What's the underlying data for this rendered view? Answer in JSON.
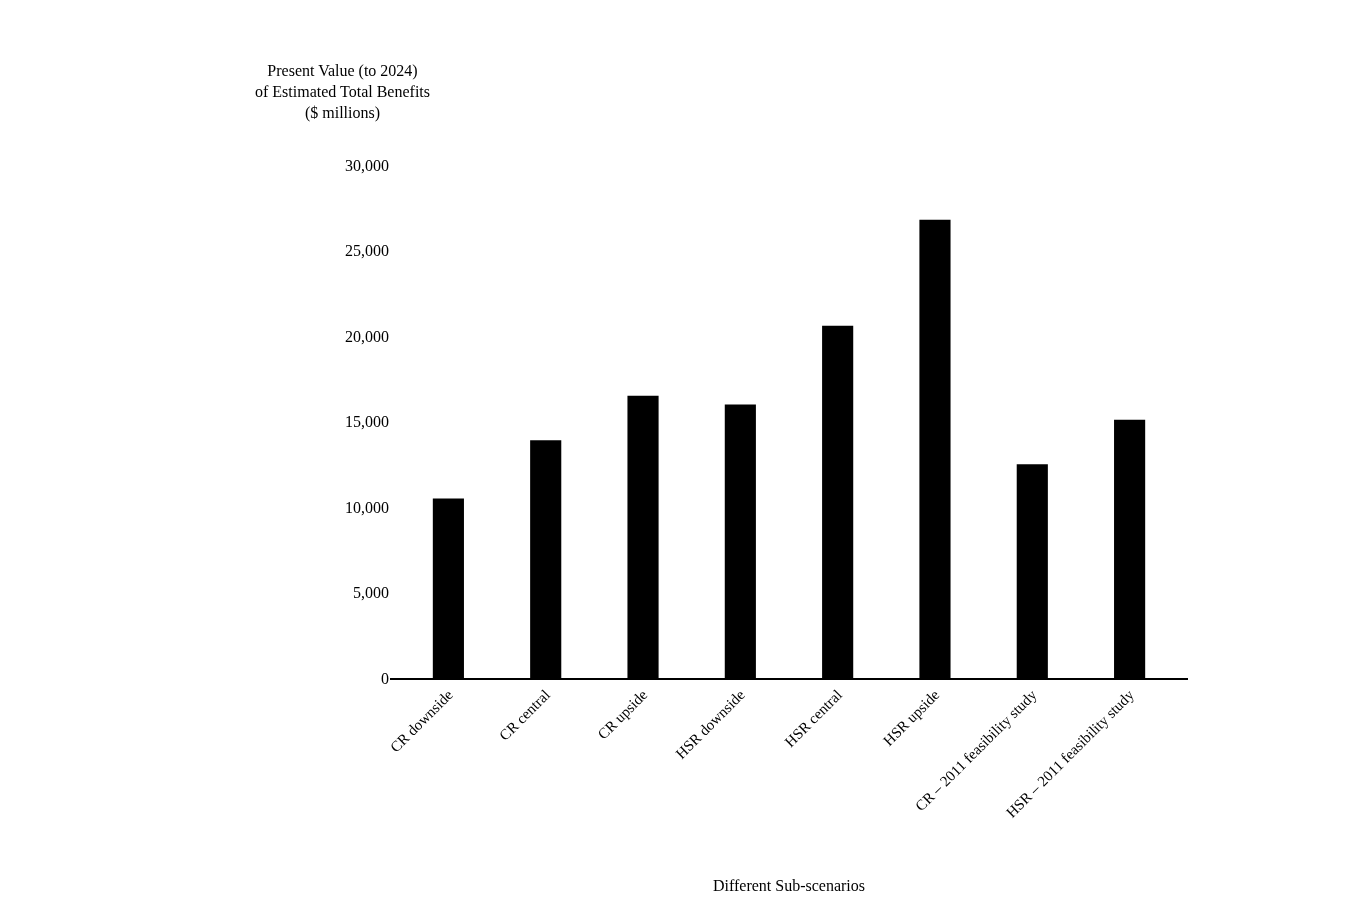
{
  "chart_data": {
    "type": "bar",
    "ylabel": "Present Value (to 2024)\nof Estimated Total Benefits\n($ millions)",
    "xlabel": "Different Sub-scenarios",
    "categories": [
      "CR downside",
      "CR central",
      "CR upside",
      "HSR downside",
      "HSR central",
      "HSR upside",
      "CR – 2011 feasibility study",
      "HSR – 2011 feasibility study"
    ],
    "values": [
      10500,
      13900,
      16500,
      16000,
      20600,
      26800,
      12500,
      15100
    ],
    "color": "#000000",
    "ylim": [
      0,
      30000
    ],
    "yticks": [
      {
        "value": 0,
        "label": "0"
      },
      {
        "value": 5000,
        "label": "5,000"
      },
      {
        "value": 10000,
        "label": "10,000"
      },
      {
        "value": 15000,
        "label": "15,000"
      },
      {
        "value": 20000,
        "label": "20,000"
      },
      {
        "value": 25000,
        "label": "25,000"
      },
      {
        "value": 30000,
        "label": "30,000"
      }
    ],
    "grid": false
  }
}
